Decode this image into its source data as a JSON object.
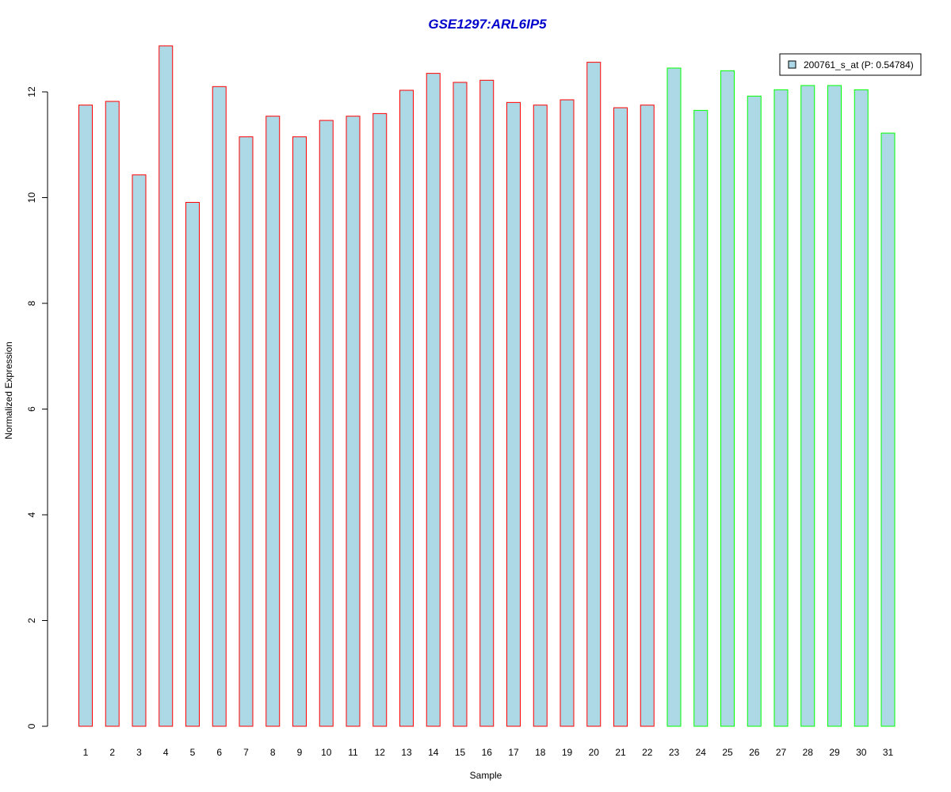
{
  "chart_data": {
    "type": "bar",
    "title": "GSE1297:ARL6IP5",
    "xlabel": "Sample",
    "ylabel": "Normalized Expression",
    "ylim": [
      0,
      12.4
    ],
    "yticks": [
      0,
      2,
      4,
      6,
      8,
      10,
      12
    ],
    "grid": false,
    "legend_position": "top-right",
    "categories": [
      "1",
      "2",
      "3",
      "4",
      "5",
      "6",
      "7",
      "8",
      "9",
      "10",
      "11",
      "12",
      "13",
      "14",
      "15",
      "16",
      "17",
      "18",
      "19",
      "20",
      "21",
      "22",
      "23",
      "24",
      "25",
      "26",
      "27",
      "28",
      "29",
      "30",
      "31"
    ],
    "series": [
      {
        "name": "200761_s_at (P: 0.54784)",
        "values": [
          11.75,
          11.82,
          10.43,
          12.87,
          9.91,
          12.1,
          11.15,
          11.54,
          11.15,
          11.46,
          11.54,
          11.59,
          12.03,
          12.35,
          12.18,
          12.22,
          11.8,
          11.75,
          11.85,
          12.56,
          11.7,
          11.75,
          12.45,
          11.65,
          12.4,
          11.92,
          12.04,
          12.12,
          12.12,
          12.04,
          11.22
        ],
        "groups": [
          "g1",
          "g1",
          "g1",
          "g1",
          "g1",
          "g1",
          "g1",
          "g1",
          "g1",
          "g1",
          "g1",
          "g1",
          "g1",
          "g1",
          "g1",
          "g1",
          "g1",
          "g1",
          "g1",
          "g1",
          "g1",
          "g1",
          "g2",
          "g2",
          "g2",
          "g2",
          "g2",
          "g2",
          "g2",
          "g2",
          "g2"
        ]
      }
    ],
    "colors": {
      "bar_fill": "#add8e6",
      "group_border": {
        "g1": "#ff0000",
        "g2": "#00ff00"
      },
      "title": "#0000cc",
      "axis": "#000000",
      "legend_border": "#000000"
    }
  }
}
